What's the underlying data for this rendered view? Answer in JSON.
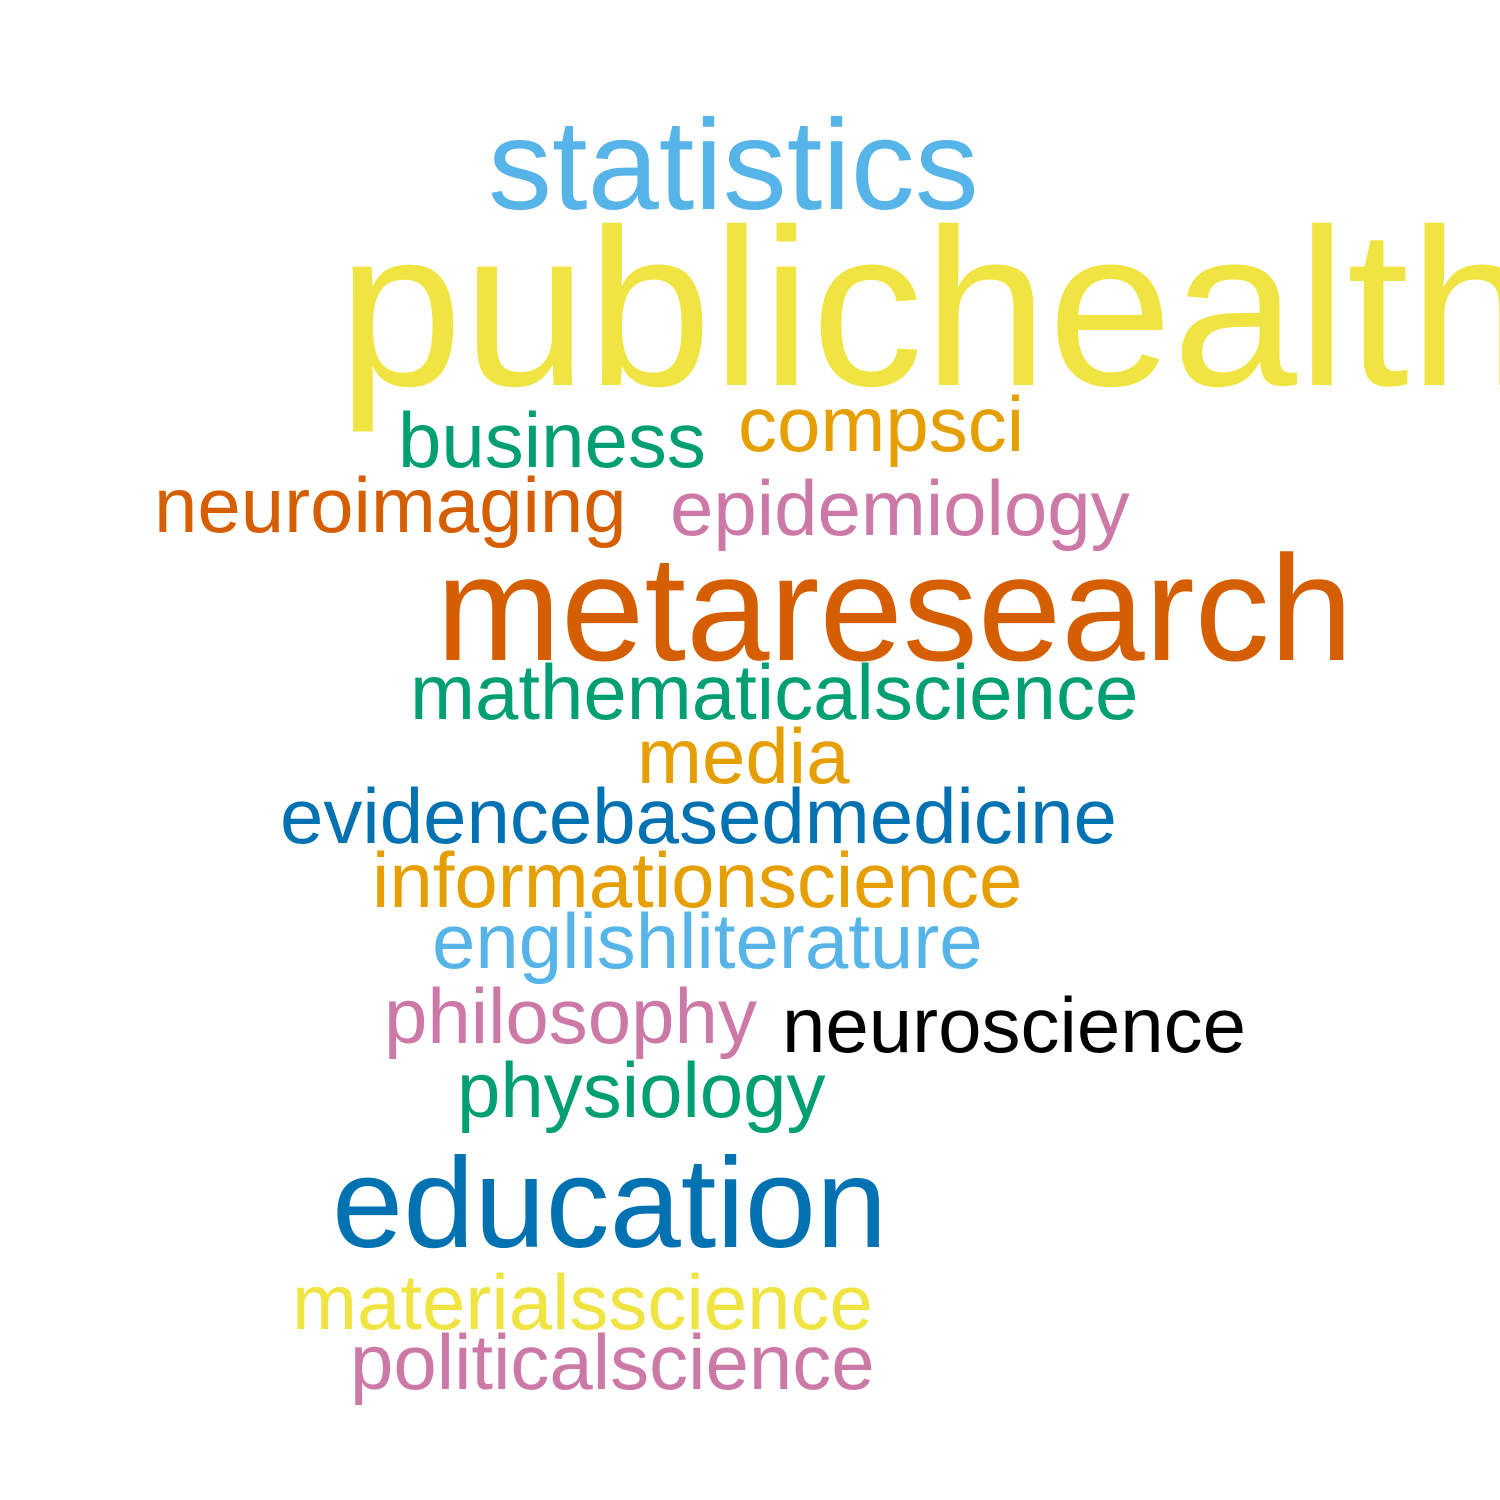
{
  "words": [
    {
      "id": "statistics",
      "text": "statistics",
      "color": "#56B4E9"
    },
    {
      "id": "publichealth",
      "text": "publichealth",
      "color": "#F0E442"
    },
    {
      "id": "business",
      "text": "business",
      "color": "#009E73"
    },
    {
      "id": "compsci",
      "text": "compsci",
      "color": "#E69F00"
    },
    {
      "id": "neuroimaging",
      "text": "neuroimaging",
      "color": "#D55E00"
    },
    {
      "id": "epidemiology",
      "text": "epidemiology",
      "color": "#CC79A7"
    },
    {
      "id": "metaresearch",
      "text": "metaresearch",
      "color": "#D55E00"
    },
    {
      "id": "mathematicalscience",
      "text": "mathematicalscience",
      "color": "#009E73"
    },
    {
      "id": "media",
      "text": "media",
      "color": "#E69F00"
    },
    {
      "id": "evidencebasedmedicine",
      "text": "evidencebasedmedicine",
      "color": "#0072B2"
    },
    {
      "id": "informationscience",
      "text": "informationscience",
      "color": "#E69F00"
    },
    {
      "id": "englishliterature",
      "text": "englishliterature",
      "color": "#56B4E9"
    },
    {
      "id": "philosophy",
      "text": "philosophy",
      "color": "#CC79A7"
    },
    {
      "id": "neuroscience",
      "text": "neuroscience",
      "color": "#000000"
    },
    {
      "id": "physiology",
      "text": "physiology",
      "color": "#009E73"
    },
    {
      "id": "education",
      "text": "education",
      "color": "#0072B2"
    },
    {
      "id": "materialsscience",
      "text": "materialsscience",
      "color": "#F0E442"
    },
    {
      "id": "politicalscience",
      "text": "politicalscience",
      "color": "#CC79A7"
    }
  ]
}
